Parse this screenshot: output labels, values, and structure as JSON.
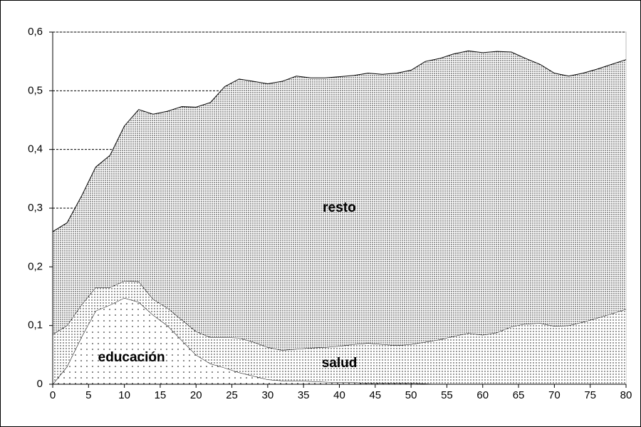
{
  "chart_data": {
    "type": "stacked-area",
    "x": [
      0,
      2,
      4,
      6,
      8,
      10,
      12,
      14,
      16,
      18,
      20,
      22,
      24,
      26,
      28,
      30,
      32,
      34,
      36,
      38,
      40,
      42,
      44,
      46,
      48,
      50,
      52,
      54,
      56,
      58,
      60,
      62,
      64,
      66,
      68,
      70,
      72,
      74,
      76,
      78,
      80
    ],
    "series": [
      {
        "name": "educación",
        "color": "#000000",
        "values": [
          0,
          0.03,
          0.08,
          0.125,
          0.135,
          0.147,
          0.14,
          0.118,
          0.1,
          0.075,
          0.05,
          0.035,
          0.028,
          0.02,
          0.014,
          0.008,
          0.006,
          0.006,
          0.005,
          0.004,
          0.003,
          0.003,
          0.002,
          0.002,
          0.002,
          0.002,
          0.001,
          0,
          0,
          0,
          0,
          0,
          0,
          0,
          0,
          0,
          0,
          0,
          0,
          0,
          0
        ]
      },
      {
        "name": "salud",
        "color": "#000000",
        "values": [
          0.085,
          0.07,
          0.055,
          0.04,
          0.03,
          0.029,
          0.035,
          0.027,
          0.03,
          0.035,
          0.04,
          0.045,
          0.052,
          0.059,
          0.058,
          0.055,
          0.052,
          0.054,
          0.057,
          0.059,
          0.062,
          0.065,
          0.068,
          0.066,
          0.064,
          0.066,
          0.071,
          0.076,
          0.082,
          0.087,
          0.084,
          0.088,
          0.098,
          0.103,
          0.104,
          0.099,
          0.1,
          0.106,
          0.113,
          0.12,
          0.128
        ]
      },
      {
        "name": "resto",
        "color": "#000000",
        "values": [
          0.175,
          0.175,
          0.185,
          0.205,
          0.225,
          0.264,
          0.293,
          0.315,
          0.335,
          0.363,
          0.382,
          0.4,
          0.427,
          0.441,
          0.444,
          0.449,
          0.458,
          0.465,
          0.46,
          0.459,
          0.459,
          0.458,
          0.46,
          0.46,
          0.464,
          0.467,
          0.478,
          0.479,
          0.481,
          0.481,
          0.481,
          0.479,
          0.468,
          0.452,
          0.441,
          0.431,
          0.425,
          0.424,
          0.424,
          0.425,
          0.425
        ]
      }
    ],
    "xlim": [
      0,
      80
    ],
    "xticks": [
      0,
      5,
      10,
      15,
      20,
      25,
      30,
      35,
      40,
      45,
      50,
      55,
      60,
      65,
      70,
      75,
      80
    ],
    "ylim": [
      0,
      0.6
    ],
    "yticks": [
      {
        "value": 0,
        "label": "0"
      },
      {
        "value": 0.1,
        "label": "0,1"
      },
      {
        "value": 0.2,
        "label": "0,2"
      },
      {
        "value": 0.3,
        "label": "0,3"
      },
      {
        "value": 0.4,
        "label": "0,4"
      },
      {
        "value": 0.5,
        "label": "0,5"
      },
      {
        "value": 0.6,
        "label": "0,6"
      }
    ],
    "grid": true
  }
}
